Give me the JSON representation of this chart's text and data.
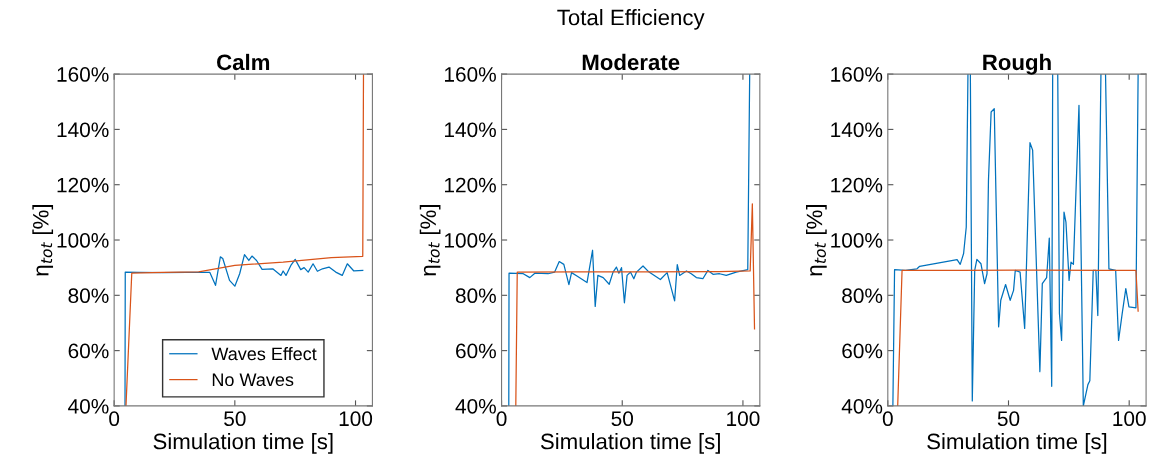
{
  "chart_data": [
    {
      "type": "line",
      "title": "Calm",
      "xlabel": "Simulation time [s]",
      "ylabel": "η$_{tot}$ [%]",
      "xlim": [
        0,
        107
      ],
      "ylim": [
        40,
        160
      ],
      "xticks": [
        0,
        50,
        100
      ],
      "yticks": [
        {
          "value": 40,
          "label": "40%"
        },
        {
          "value": 60,
          "label": "60%"
        },
        {
          "value": 80,
          "label": "80%"
        },
        {
          "value": 100,
          "label": "100%"
        },
        {
          "value": 120,
          "label": "120%"
        },
        {
          "value": 140,
          "label": "140%"
        },
        {
          "value": 160,
          "label": "160%"
        }
      ],
      "grid": false,
      "legend": "bottom",
      "series": [
        {
          "name": "Waves Effect",
          "color": "#0072bd",
          "x": [
            4.5,
            4.6,
            10,
            20,
            30,
            39.6,
            42,
            44,
            45,
            47.8,
            50,
            52,
            54,
            55.8,
            57.1,
            59,
            61.3,
            65.7,
            69.1,
            70,
            71.2,
            73.2,
            75,
            77.3,
            78.7,
            80.4,
            82.4,
            84.2,
            86.3,
            89,
            91.8,
            94.5,
            96.6,
            99.3,
            103
          ],
          "values": [
            40,
            88.4,
            88.3,
            88.2,
            88.3,
            88.3,
            83.6,
            93.9,
            93.3,
            85.4,
            83.3,
            87.8,
            94.7,
            92.6,
            94.2,
            92.6,
            89.4,
            89.6,
            87.2,
            88.8,
            87.2,
            90.8,
            93,
            89.3,
            90,
            88.4,
            91.4,
            88.7,
            89.6,
            90.2,
            88.4,
            87.2,
            91.4,
            88.8,
            89
          ]
        },
        {
          "name": "No Waves",
          "color": "#d95319",
          "x": [
            4.9,
            7.3,
            20,
            35,
            50,
            70,
            90,
            103,
            103.3
          ],
          "values": [
            40,
            88,
            88.3,
            88.5,
            90.8,
            92,
            93.6,
            94.1,
            160
          ]
        }
      ]
    },
    {
      "type": "line",
      "title": "Moderate",
      "subtitle": "Total Efficiency",
      "xlabel": "Simulation time [s]",
      "ylabel": "η$_{tot}$ [%]",
      "xlim": [
        0,
        107
      ],
      "ylim": [
        40,
        160
      ],
      "xticks": [
        0,
        50,
        100
      ],
      "yticks": [
        {
          "value": 40,
          "label": "40%"
        },
        {
          "value": 60,
          "label": "60%"
        },
        {
          "value": 80,
          "label": "80%"
        },
        {
          "value": 100,
          "label": "100%"
        },
        {
          "value": 120,
          "label": "120%"
        },
        {
          "value": 140,
          "label": "140%"
        },
        {
          "value": 160,
          "label": "160%"
        }
      ],
      "grid": false,
      "series": [
        {
          "color": "#0072bd",
          "x": [
            3,
            3.1,
            9,
            11.7,
            13.8,
            19.3,
            22,
            23.9,
            25.8,
            27.9,
            29,
            31.4,
            35.4,
            37.7,
            38.8,
            39.9,
            42.1,
            44.6,
            46.2,
            47.6,
            48.6,
            49.7,
            50.9,
            52,
            53.4,
            54.8,
            55.9,
            58.6,
            61.1,
            65.8,
            68.6,
            71.7,
            72.8,
            73.8,
            76.6,
            78.6,
            80.7,
            83.4,
            85.5,
            87.6,
            90.3,
            93.1,
            97.2,
            102,
            102.8
          ],
          "values": [
            40,
            88,
            87.8,
            86.4,
            88,
            87.8,
            88.4,
            92.2,
            91.2,
            83.9,
            88.2,
            86.9,
            84.6,
            96.3,
            76,
            87.2,
            86.4,
            84,
            88.4,
            90.2,
            88,
            90,
            77.3,
            87.2,
            88.4,
            86,
            88.4,
            90.6,
            88.4,
            85.7,
            88.2,
            78,
            91.1,
            87.2,
            88.8,
            87.8,
            86.4,
            86,
            89,
            87.6,
            87.8,
            87.2,
            88.4,
            89.3,
            160
          ]
        },
        {
          "color": "#d95319",
          "x": [
            5.9,
            6.5,
            30,
            60,
            90,
            103,
            103.9,
            104.8
          ],
          "values": [
            40,
            88.4,
            88.5,
            88.5,
            88.6,
            88.8,
            113.1,
            67.9
          ]
        }
      ]
    },
    {
      "type": "line",
      "title": "Rough",
      "xlabel": "Simulation time [s]",
      "ylabel": "η$_{tot}$ [%]",
      "xlim": [
        0,
        107
      ],
      "ylim": [
        40,
        160
      ],
      "xticks": [
        0,
        50,
        100
      ],
      "yticks": [
        {
          "value": 40,
          "label": "40%"
        },
        {
          "value": 60,
          "label": "60%"
        },
        {
          "value": 80,
          "label": "80%"
        },
        {
          "value": 100,
          "label": "100%"
        },
        {
          "value": 120,
          "label": "120%"
        },
        {
          "value": 140,
          "label": "140%"
        },
        {
          "value": 160,
          "label": "160%"
        }
      ],
      "grid": false,
      "series": [
        {
          "color": "#0072bd",
          "x": [
            2.1,
            2.8,
            7.3,
            12.1,
            13.2,
            28.7,
            30,
            31.4,
            32.5,
            33.2,
            33.7,
            34.2,
            35,
            36,
            36.9,
            38.6,
            40.1,
            41.1,
            41.7,
            42.8,
            44.1,
            45.9,
            46.8,
            48.8,
            50.7,
            52.1,
            52.8,
            54.8,
            56.7,
            58.9,
            60,
            63,
            64,
            65.8,
            66.9,
            67.9,
            68.3,
            69.3,
            70.4,
            71.1,
            72,
            73,
            73.8,
            75.1,
            75.9,
            76.9,
            79.2,
            81,
            82.9,
            83.7,
            85.1,
            86.2,
            87,
            88.3,
            89.2,
            90.2,
            91.6,
            94.4,
            95.6,
            97.1,
            98.6,
            99.9,
            102.8,
            103.7
          ],
          "values": [
            40,
            89.3,
            89,
            89.6,
            90.5,
            92.9,
            91.2,
            95.1,
            104.7,
            160,
            null,
            160,
            41.8,
            89,
            93,
            91.4,
            84.2,
            87.8,
            121.6,
            146.3,
            147.5,
            68.6,
            78.2,
            83.9,
            78.2,
            81.8,
            89,
            88.4,
            68,
            135.2,
            132.5,
            52.4,
            84.2,
            86.4,
            100.7,
            47.1,
            160,
            null,
            160,
            73.4,
            63.7,
            110.1,
            106.5,
            85.4,
            92,
            91.2,
            148.7,
            40,
            47.7,
            49.1,
            89,
            89,
            72.7,
            160,
            null,
            160,
            89.6,
            89,
            63.7,
            73.4,
            82.4,
            75.8,
            75.5,
            160
          ]
        },
        {
          "color": "#d95319",
          "x": [
            4.1,
            5.9,
            30,
            60,
            90,
            102.8,
            103.7
          ],
          "values": [
            40,
            89,
            89,
            89.1,
            89,
            89,
            74.3
          ]
        }
      ]
    }
  ]
}
